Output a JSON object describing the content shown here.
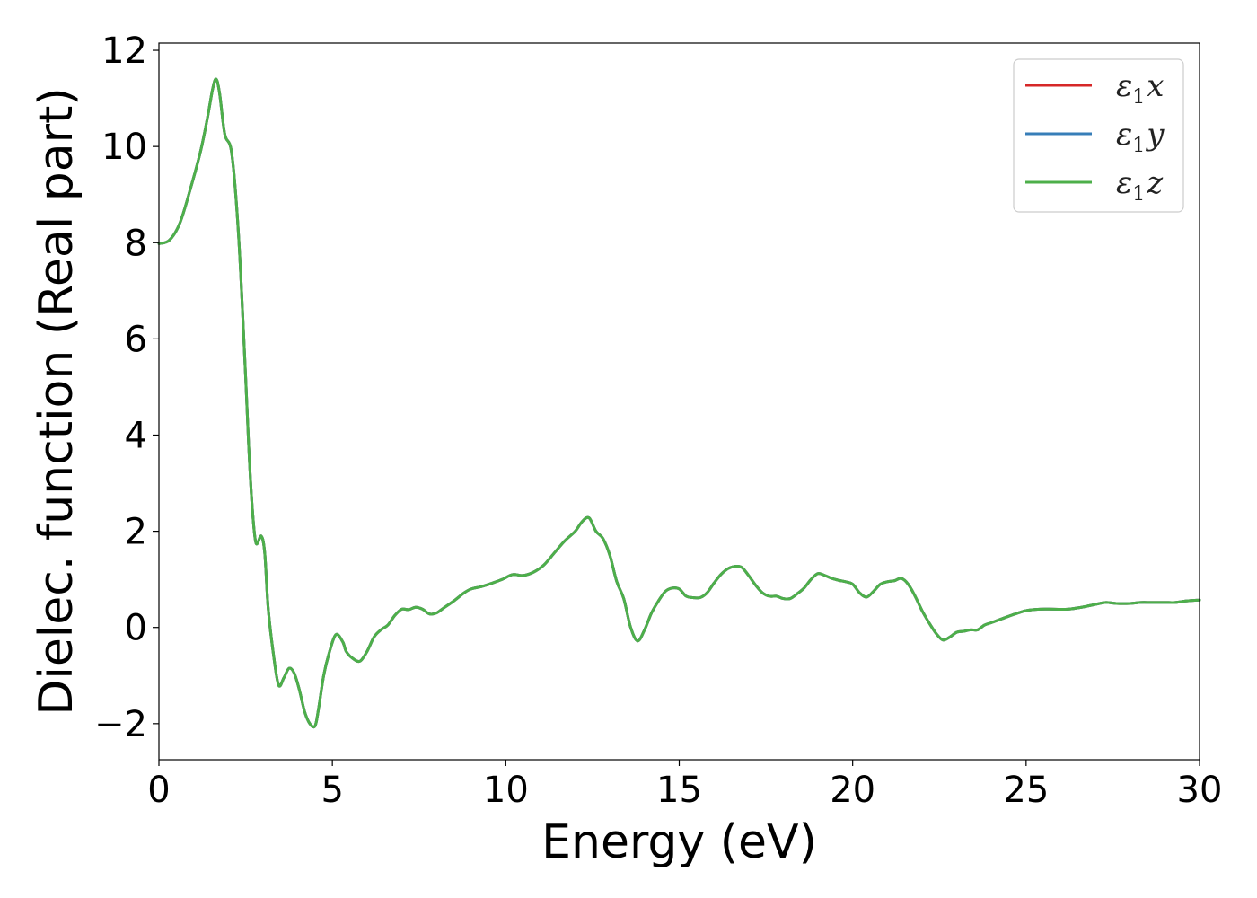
{
  "chart_data": {
    "type": "line",
    "xlabel": "Energy (eV)",
    "ylabel": "Dielec. function (Real part)",
    "xlim": [
      0,
      30
    ],
    "ylim": [
      -2.75,
      12.15
    ],
    "xticks": [
      0,
      5,
      10,
      15,
      20,
      25,
      30
    ],
    "yticks": [
      -2,
      0,
      2,
      4,
      6,
      8,
      10,
      12
    ],
    "ytick_labels": [
      "−2",
      "0",
      "2",
      "4",
      "6",
      "8",
      "10",
      "12"
    ],
    "grid": false,
    "legend_position": "top-right",
    "series": [
      {
        "name": "ε1x",
        "label": {
          "base": "ε",
          "sub": "1",
          "comp": "x"
        },
        "color": "#d62728"
      },
      {
        "name": "ε1y",
        "label": {
          "base": "ε",
          "sub": "1",
          "comp": "y"
        },
        "color": "#377eb8"
      },
      {
        "name": "ε1z",
        "label": {
          "base": "ε",
          "sub": "1",
          "comp": "z"
        },
        "color": "#4daf4a"
      }
    ],
    "x": [
      0,
      0.3,
      0.6,
      0.9,
      1.2,
      1.4,
      1.55,
      1.65,
      1.75,
      1.9,
      2.1,
      2.3,
      2.5,
      2.6,
      2.7,
      2.8,
      2.95,
      3.05,
      3.15,
      3.3,
      3.45,
      3.6,
      3.75,
      3.9,
      4.05,
      4.2,
      4.35,
      4.5,
      4.6,
      4.75,
      4.9,
      5.1,
      5.3,
      5.4,
      5.6,
      5.8,
      6.0,
      6.2,
      6.4,
      6.6,
      6.8,
      7.0,
      7.2,
      7.4,
      7.6,
      7.8,
      8.0,
      8.2,
      8.5,
      8.8,
      9.0,
      9.3,
      9.6,
      9.9,
      10.2,
      10.5,
      10.8,
      11.1,
      11.4,
      11.7,
      12.0,
      12.2,
      12.4,
      12.6,
      12.8,
      13.0,
      13.2,
      13.4,
      13.6,
      13.8,
      14.0,
      14.2,
      14.4,
      14.6,
      14.8,
      15.0,
      15.2,
      15.4,
      15.6,
      15.8,
      16.0,
      16.2,
      16.4,
      16.6,
      16.8,
      17.0,
      17.2,
      17.4,
      17.6,
      17.8,
      18.0,
      18.2,
      18.4,
      18.6,
      18.8,
      19.0,
      19.2,
      19.4,
      19.6,
      19.8,
      20.0,
      20.2,
      20.4,
      20.6,
      20.8,
      21.0,
      21.2,
      21.4,
      21.6,
      21.8,
      22.0,
      22.2,
      22.4,
      22.6,
      22.8,
      23.0,
      23.2,
      23.4,
      23.6,
      23.8,
      24.0,
      24.3,
      24.6,
      25.0,
      25.4,
      25.8,
      26.2,
      26.6,
      27.0,
      27.3,
      27.6,
      28.0,
      28.3,
      28.6,
      29.0,
      29.3,
      29.6,
      30.0
    ],
    "values": [
      7.98,
      8.05,
      8.4,
      9.1,
      9.9,
      10.6,
      11.2,
      11.4,
      11.1,
      10.25,
      9.85,
      8.1,
      5.2,
      3.6,
      2.4,
      1.75,
      1.9,
      1.55,
      0.4,
      -0.55,
      -1.2,
      -1.05,
      -0.85,
      -0.95,
      -1.3,
      -1.75,
      -2.0,
      -2.05,
      -1.7,
      -1.0,
      -0.55,
      -0.15,
      -0.3,
      -0.5,
      -0.65,
      -0.7,
      -0.5,
      -0.2,
      -0.05,
      0.05,
      0.25,
      0.38,
      0.37,
      0.42,
      0.38,
      0.28,
      0.3,
      0.4,
      0.55,
      0.72,
      0.8,
      0.85,
      0.92,
      1.0,
      1.1,
      1.08,
      1.15,
      1.3,
      1.55,
      1.8,
      2.0,
      2.2,
      2.28,
      2.0,
      1.85,
      1.5,
      0.95,
      0.6,
      0.0,
      -0.28,
      -0.05,
      0.3,
      0.55,
      0.75,
      0.82,
      0.8,
      0.65,
      0.62,
      0.62,
      0.72,
      0.92,
      1.1,
      1.22,
      1.27,
      1.25,
      1.08,
      0.88,
      0.72,
      0.65,
      0.65,
      0.6,
      0.6,
      0.7,
      0.82,
      1.0,
      1.12,
      1.08,
      1.02,
      0.98,
      0.95,
      0.9,
      0.72,
      0.63,
      0.75,
      0.9,
      0.95,
      0.97,
      1.02,
      0.9,
      0.65,
      0.35,
      0.1,
      -0.12,
      -0.26,
      -0.2,
      -0.1,
      -0.08,
      -0.05,
      -0.05,
      0.05,
      0.1,
      0.18,
      0.26,
      0.35,
      0.38,
      0.38,
      0.38,
      0.42,
      0.48,
      0.52,
      0.5,
      0.5,
      0.52,
      0.52,
      0.52,
      0.52,
      0.55,
      0.57
    ]
  }
}
